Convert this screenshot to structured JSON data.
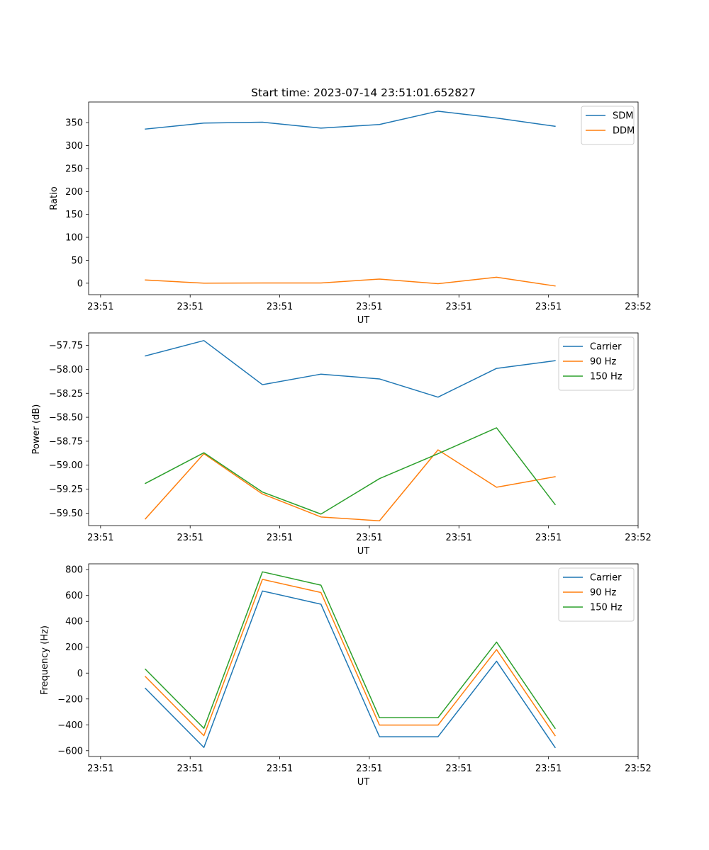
{
  "colors": {
    "c0": "#1f77b4",
    "c1": "#ff7f0e",
    "c2": "#2ca02c"
  },
  "chart_data": [
    {
      "type": "line",
      "title": "Start time: 2023-07-14 23:51:01.652827",
      "xlabel": "UT",
      "ylabel": "Ratio",
      "xlim": [
        -0.2,
        9
      ],
      "xticks": [
        0,
        1.5,
        3,
        4.5,
        6,
        7.5,
        9
      ],
      "xticklabels": [
        "23:51",
        "23:51",
        "23:51",
        "23:51",
        "23:51",
        "23:51",
        "23:52"
      ],
      "ylim": [
        -25,
        395
      ],
      "yticks": [
        0,
        50,
        100,
        150,
        200,
        250,
        300,
        350
      ],
      "yticklabels": [
        "0",
        "50",
        "100",
        "150",
        "200",
        "250",
        "300",
        "350"
      ],
      "x": [
        0.75,
        1.73,
        2.71,
        3.69,
        4.67,
        5.65,
        6.63,
        7.61
      ],
      "series": [
        {
          "name": "SDM",
          "color": "c0",
          "values": [
            336,
            349,
            351,
            338,
            346,
            375,
            360,
            342
          ]
        },
        {
          "name": "DDM",
          "color": "c1",
          "values": [
            7,
            0,
            0.5,
            0.5,
            9,
            -1,
            13,
            -6
          ]
        }
      ],
      "legend": "top-right"
    },
    {
      "type": "line",
      "title": "",
      "xlabel": "UT",
      "ylabel": "Power (dB)",
      "xlim": [
        -0.2,
        9
      ],
      "xticks": [
        0,
        1.5,
        3,
        4.5,
        6,
        7.5,
        9
      ],
      "xticklabels": [
        "23:51",
        "23:51",
        "23:51",
        "23:51",
        "23:51",
        "23:51",
        "23:52"
      ],
      "ylim": [
        -59.63,
        -57.62
      ],
      "yticks": [
        -59.5,
        -59.25,
        -59.0,
        -58.75,
        -58.5,
        -58.25,
        -58.0,
        -57.75
      ],
      "yticklabels": [
        "−59.50",
        "−59.25",
        "−59.00",
        "−58.75",
        "−58.50",
        "−58.25",
        "−58.00",
        "−57.75"
      ],
      "x": [
        0.75,
        1.73,
        2.71,
        3.69,
        4.67,
        5.65,
        6.63,
        7.61
      ],
      "series": [
        {
          "name": "Carrier",
          "color": "c0",
          "values": [
            -57.86,
            -57.7,
            -58.16,
            -58.05,
            -58.1,
            -58.29,
            -57.99,
            -57.91
          ]
        },
        {
          "name": "90 Hz",
          "color": "c1",
          "values": [
            -59.56,
            -58.88,
            -59.3,
            -59.54,
            -59.58,
            -58.84,
            -59.23,
            -59.12
          ]
        },
        {
          "name": "150 Hz",
          "color": "c2",
          "values": [
            -59.19,
            -58.87,
            -59.28,
            -59.51,
            -59.14,
            -58.88,
            -58.61,
            -59.41
          ]
        }
      ],
      "legend": "top-right"
    },
    {
      "type": "line",
      "title": "",
      "xlabel": "UT",
      "ylabel": "Frequency (Hz)",
      "xlim": [
        -0.2,
        9
      ],
      "xticks": [
        0,
        1.5,
        3,
        4.5,
        6,
        7.5,
        9
      ],
      "xticklabels": [
        "23:51",
        "23:51",
        "23:51",
        "23:51",
        "23:51",
        "23:51",
        "23:52"
      ],
      "ylim": [
        -645,
        845
      ],
      "yticks": [
        -600,
        -400,
        -200,
        0,
        200,
        400,
        600,
        800
      ],
      "yticklabels": [
        "−600",
        "−400",
        "−200",
        "0",
        "200",
        "400",
        "600",
        "800"
      ],
      "x": [
        0.75,
        1.73,
        2.71,
        3.69,
        4.67,
        5.65,
        6.63,
        7.61
      ],
      "series": [
        {
          "name": "Carrier",
          "color": "c0",
          "values": [
            -118,
            -575,
            635,
            533,
            -492,
            -492,
            92,
            -575
          ]
        },
        {
          "name": "90 Hz",
          "color": "c1",
          "values": [
            -27,
            -484,
            725,
            623,
            -402,
            -402,
            182,
            -484
          ]
        },
        {
          "name": "150 Hz",
          "color": "c2",
          "values": [
            30,
            -427,
            783,
            680,
            -345,
            -345,
            240,
            -427
          ]
        }
      ],
      "legend": "top-right"
    }
  ]
}
